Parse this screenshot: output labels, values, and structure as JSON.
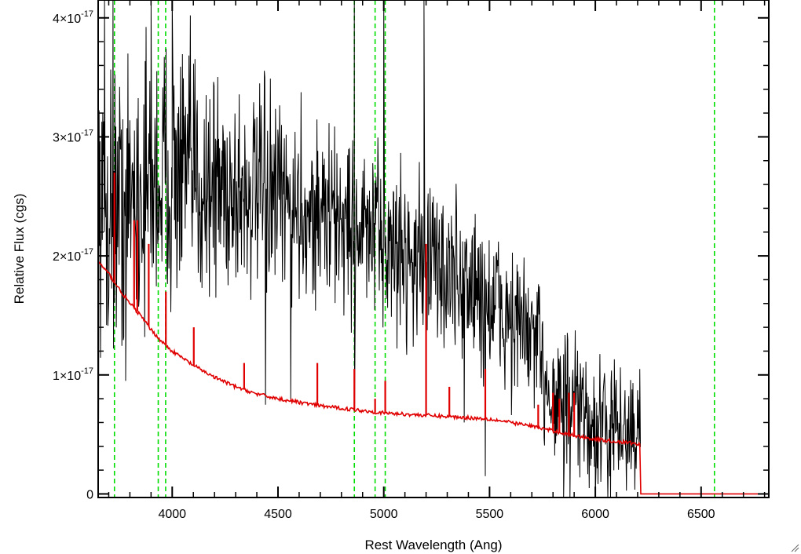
{
  "chart_data": {
    "type": "line",
    "title": "",
    "xlabel": "Rest Wavelength (Ang)",
    "ylabel": "Relative Flux (cgs)",
    "xlim": [
      3650,
      6820
    ],
    "ylim": [
      -3e-19,
      4.15e-17
    ],
    "x_ticks": [
      {
        "value": 4000,
        "label": "4000"
      },
      {
        "value": 4500,
        "label": "4500"
      },
      {
        "value": 5000,
        "label": "5000"
      },
      {
        "value": 5500,
        "label": "5500"
      },
      {
        "value": 6000,
        "label": "6000"
      },
      {
        "value": 6500,
        "label": "6500"
      }
    ],
    "y_ticks": [
      {
        "value": 0,
        "label": "0",
        "exp": ""
      },
      {
        "value": 1e-17,
        "label": "1×10",
        "exp": "-17"
      },
      {
        "value": 2e-17,
        "label": "2×10",
        "exp": "-17"
      },
      {
        "value": 3e-17,
        "label": "3×10",
        "exp": "-17"
      },
      {
        "value": 4e-17,
        "label": "4×10",
        "exp": "-17"
      }
    ],
    "grid": false,
    "legend": "none",
    "colors": {
      "observed": "#000000",
      "model": "#e00000",
      "lines": "#00dd00"
    },
    "reference_lines": [
      3727,
      3934,
      3969,
      4861,
      4959,
      5007,
      6563
    ],
    "series": [
      {
        "color": "#000000",
        "kind": "noisy-spectrum",
        "x_start": 3650,
        "x_end": 6215,
        "sigma_knots": [
          [
            3650,
            6e-18
          ],
          [
            4000,
            5.5e-18
          ],
          [
            4500,
            4e-18
          ],
          [
            5000,
            3.5e-18
          ],
          [
            5500,
            3.5e-18
          ],
          [
            5800,
            3e-18
          ],
          [
            6215,
            2.5e-18
          ]
        ],
        "continuum": [
          [
            3650,
            2.3e-17
          ],
          [
            3800,
            2.5e-17
          ],
          [
            4000,
            2.7e-17
          ],
          [
            4200,
            2.6e-17
          ],
          [
            4500,
            2.45e-17
          ],
          [
            4800,
            2.3e-17
          ],
          [
            5000,
            2.1e-17
          ],
          [
            5200,
            1.95e-17
          ],
          [
            5400,
            1.75e-17
          ],
          [
            5500,
            1.6e-17
          ],
          [
            5700,
            1.3e-17
          ],
          [
            5800,
            8.5e-18
          ],
          [
            6000,
            5.5e-18
          ],
          [
            6215,
            5e-18
          ]
        ],
        "spikes": [
          [
            3680,
            4.2e-17
          ],
          [
            3720,
            4.2e-17
          ],
          [
            3900,
            4.2e-17
          ],
          [
            4000,
            4.2e-17
          ],
          [
            4861,
            4.2e-17
          ],
          [
            5000,
            4.2e-17
          ],
          [
            5190,
            4.2e-17
          ],
          [
            5480,
            2.95e-17
          ],
          [
            6210,
            1.05e-17
          ],
          [
            4441,
            7.5e-18
          ],
          [
            4560,
            8e-18
          ],
          [
            4862,
            7e-18
          ],
          [
            5380,
            6e-18
          ],
          [
            5480,
            1.5e-18
          ],
          [
            5850,
            -5e-19
          ],
          [
            5880,
            -5e-19
          ],
          [
            6000,
            -5e-19
          ],
          [
            3780,
            9.5e-18
          ]
        ]
      },
      {
        "color": "#e00000",
        "kind": "model",
        "points": [
          [
            3650,
            1.95e-17
          ],
          [
            3700,
            1.85e-17
          ],
          [
            3750,
            1.72e-17
          ],
          [
            3800,
            1.6e-17
          ],
          [
            3850,
            1.5e-17
          ],
          [
            3900,
            1.38e-17
          ],
          [
            3950,
            1.28e-17
          ],
          [
            4000,
            1.2e-17
          ],
          [
            4100,
            1.08e-17
          ],
          [
            4200,
            9.8e-18
          ],
          [
            4300,
            9e-18
          ],
          [
            4400,
            8.4e-18
          ],
          [
            4500,
            8e-18
          ],
          [
            4600,
            7.7e-18
          ],
          [
            4700,
            7.4e-18
          ],
          [
            4800,
            7.2e-18
          ],
          [
            4900,
            7e-18
          ],
          [
            5000,
            6.8e-18
          ],
          [
            5100,
            6.7e-18
          ],
          [
            5200,
            6.6e-18
          ],
          [
            5300,
            6.5e-18
          ],
          [
            5400,
            6.4e-18
          ],
          [
            5500,
            6.3e-18
          ],
          [
            5600,
            6e-18
          ],
          [
            5700,
            5.7e-18
          ],
          [
            5800,
            5.3e-18
          ],
          [
            5900,
            4.9e-18
          ],
          [
            6000,
            4.6e-18
          ],
          [
            6100,
            4.4e-18
          ],
          [
            6210,
            4.2e-18
          ],
          [
            6215,
            0
          ],
          [
            6820,
            0
          ]
        ],
        "emission_lines": [
          [
            3727,
            2.7e-17
          ],
          [
            3820,
            2.3e-17
          ],
          [
            3835,
            2.3e-17
          ],
          [
            3889,
            2.1e-17
          ],
          [
            3970,
            1.7e-17
          ],
          [
            4102,
            1.4e-17
          ],
          [
            4340,
            1.1e-17
          ],
          [
            4686,
            1.1e-17
          ],
          [
            4861,
            1.05e-17
          ],
          [
            4959,
            8e-18
          ],
          [
            5007,
            9.5e-18
          ],
          [
            5200,
            2.1e-17
          ],
          [
            5310,
            9e-18
          ],
          [
            5480,
            1.05e-17
          ],
          [
            5730,
            7.5e-18
          ],
          [
            5800,
            8.5e-18
          ],
          [
            5830,
            8e-18
          ],
          [
            5875,
            8.5e-18
          ],
          [
            5900,
            8.5e-18
          ]
        ]
      }
    ]
  }
}
